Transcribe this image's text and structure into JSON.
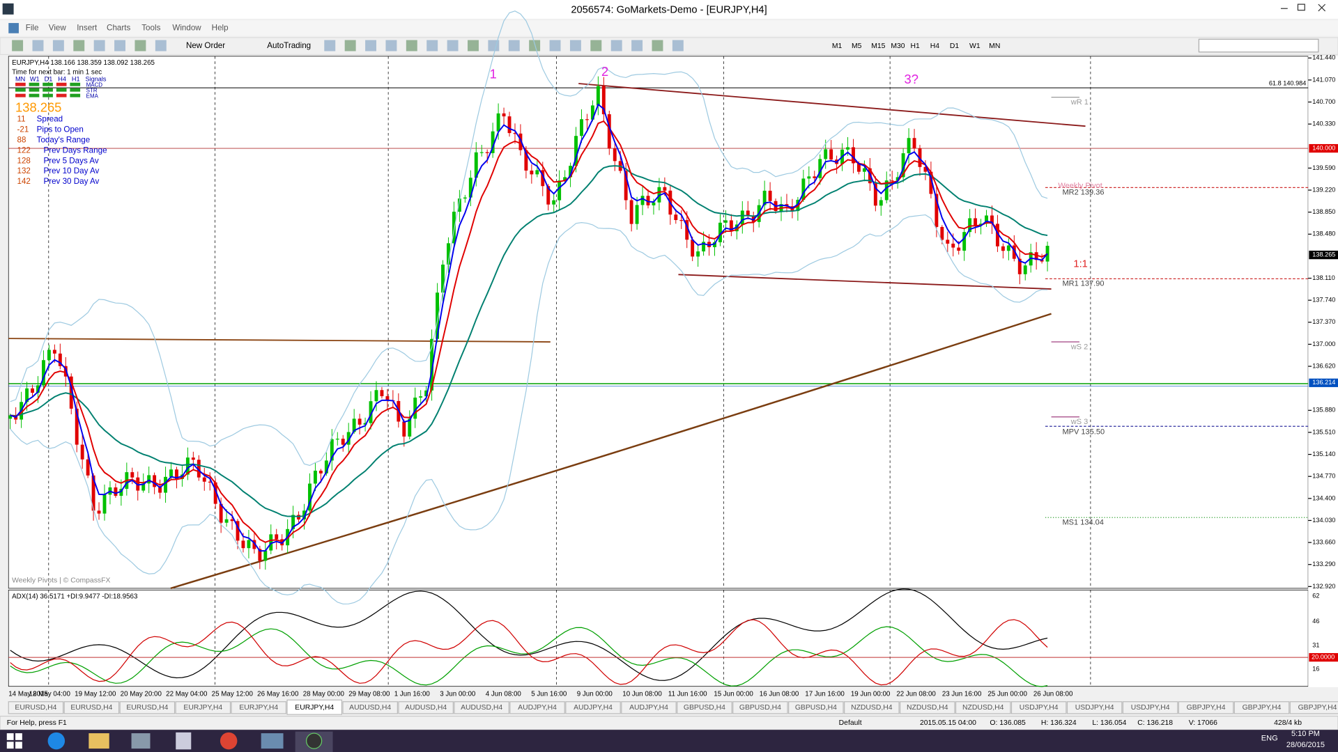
{
  "title_bar": {
    "title": "2056574: GoMarkets-Demo - [EURJPY,H4]"
  },
  "menu": [
    "File",
    "View",
    "Insert",
    "Charts",
    "Tools",
    "Window",
    "Help"
  ],
  "toolbar": {
    "new_order": "New Order",
    "auto_trading": "AutoTrading",
    "timeframes": [
      "M1",
      "M5",
      "M15",
      "M30",
      "H1",
      "H4",
      "D1",
      "W1",
      "MN"
    ]
  },
  "chart": {
    "symbol_info": "EURJPY,H4  138.166 138.359 138.092 138.265",
    "next_bar": "Time for next bar: 1 min 1 sec",
    "signal_headers": [
      "MN",
      "W1",
      "D1",
      "H4",
      "H1",
      "Signals"
    ],
    "signal_rows": [
      "MACD",
      "STR",
      "EMA"
    ],
    "price": "138.265",
    "stats": [
      {
        "value": 11,
        "label": "Spread"
      },
      {
        "value": -21,
        "label": "Pips to Open"
      },
      {
        "value": 88,
        "label": "Today's Range"
      },
      {
        "value": 122,
        "label": "Prev Days Range"
      },
      {
        "value": 128,
        "label": "Prev 5 Days Av"
      },
      {
        "value": 132,
        "label": "Prev 10 Day Av"
      },
      {
        "value": 142,
        "label": "Prev 30 Day Av"
      }
    ],
    "waves": [
      "1",
      "2",
      "3?"
    ],
    "pivots": {
      "wr1": "wR 1",
      "weekly_pivot": "Weekly Pivot",
      "mr2": "MR2  139.36",
      "ratio": "1:1",
      "mr1": "MR1  137.90",
      "ws2": "wS 2",
      "ws3": "wS 3",
      "mpv": "MPV  135.50",
      "ms1": "MS1  134.04"
    },
    "fib": "61.8  140.984",
    "credit": "Weekly Pivots | © CompassFX"
  },
  "price_axis": {
    "labels": [
      "141.440",
      "141.070",
      "140.700",
      "140.330",
      "139.590",
      "139.220",
      "138.850",
      "138.480",
      "138.110",
      "137.740",
      "137.370",
      "137.000",
      "136.620",
      "135.880",
      "135.510",
      "135.140",
      "134.770",
      "134.400",
      "134.030",
      "133.660",
      "133.290",
      "132.920"
    ],
    "level_red": "140.000",
    "current": "138.265",
    "level_blue": "136.214"
  },
  "indicator": {
    "label": "ADX(14) 36.5171 +DI:9.9477 -DI:18.9563",
    "axis": [
      "62",
      "46",
      "31",
      "16"
    ],
    "level": "20.0000"
  },
  "time_axis": [
    "14 May 2015",
    "18 May 04:00",
    "19 May 12:00",
    "20 May 20:00",
    "22 May 04:00",
    "25 May 12:00",
    "26 May 16:00",
    "28 May 00:00",
    "29 May 08:00",
    "1 Jun 16:00",
    "3 Jun 00:00",
    "4 Jun 08:00",
    "5 Jun 16:00",
    "9 Jun 00:00",
    "10 Jun 08:00",
    "11 Jun 16:00",
    "15 Jun 00:00",
    "16 Jun 08:00",
    "17 Jun 16:00",
    "19 Jun 00:00",
    "22 Jun 08:00",
    "23 Jun 16:00",
    "25 Jun 00:00",
    "26 Jun 08:00"
  ],
  "tabs": [
    "EURUSD,H4",
    "EURUSD,H4",
    "EURUSD,H4",
    "EURJPY,H4",
    "EURJPY,H4",
    "EURJPY,H4",
    "AUDUSD,H4",
    "AUDUSD,H4",
    "AUDUSD,H4",
    "AUDJPY,H4",
    "AUDJPY,H4",
    "AUDJPY,H4",
    "GBPUSD,H4",
    "GBPUSD,H4",
    "GBPUSD,H4",
    "NZDUSD,H4",
    "NZDUSD,H4",
    "NZDUSD,H4",
    "USDJPY,H4",
    "USDJPY,H4",
    "USDJPY,H4",
    "GBPJPY,H4",
    "GBPJPY,H4",
    "GBPJPY,H4"
  ],
  "status": {
    "help": "For Help, press F1",
    "profile": "Default",
    "time": "2015.05.15 04:00",
    "open": "O: 136.085",
    "high": "H: 136.324",
    "low": "L: 136.054",
    "close": "C: 136.218",
    "volume": "V: 17066",
    "traffic": "428/4 kb"
  },
  "taskbar": {
    "language": "ENG",
    "time": "5:10 PM",
    "date": "28/06/2015"
  }
}
